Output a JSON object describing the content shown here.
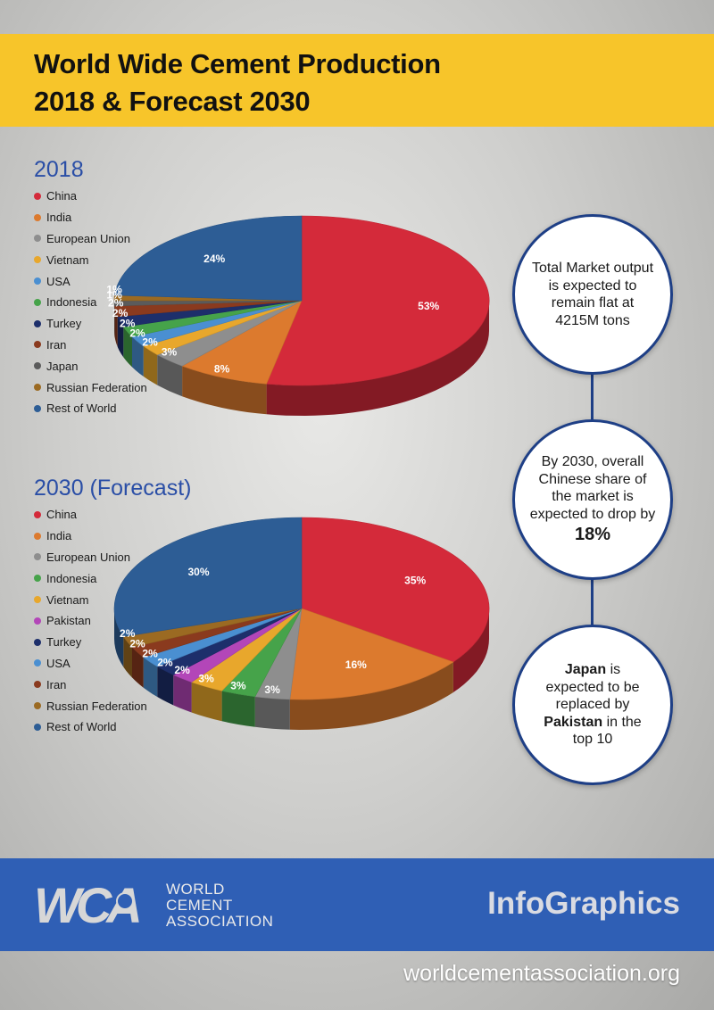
{
  "header": {
    "title_line1": "World Wide Cement Production",
    "title_line2": "2018 & Forecast 2030"
  },
  "chart_data": [
    {
      "type": "pie",
      "title": "2018",
      "start_label": "China",
      "categories": [
        "China",
        "India",
        "European Union",
        "Vietnam",
        "USA",
        "Indonesia",
        "Turkey",
        "Iran",
        "Japan",
        "Russian Federation",
        "Rest of World"
      ],
      "values": [
        53,
        8,
        3,
        2,
        2,
        2,
        2,
        2,
        1,
        1,
        24
      ],
      "value_labels": [
        "53%",
        "8%",
        "3%",
        "2%",
        "2%",
        "2%",
        "2%",
        "2%",
        "1%",
        "1%",
        "24%"
      ],
      "colors": [
        "#d42a3a",
        "#dc7a2e",
        "#8e8e8e",
        "#e8a72c",
        "#4a8fd1",
        "#46a34a",
        "#1d2f6b",
        "#8a3a1e",
        "#5b5b5b",
        "#9b6a22",
        "#2d5d95"
      ],
      "legend_position": "left"
    },
    {
      "type": "pie",
      "title": "2030 (Forecast)",
      "categories": [
        "China",
        "India",
        "European Union",
        "Indonesia",
        "Vietnam",
        "Pakistan",
        "Turkey",
        "USA",
        "Iran",
        "Russian Federation",
        "Rest of World"
      ],
      "values": [
        35,
        16,
        3,
        3,
        3,
        2,
        2,
        2,
        2,
        2,
        30
      ],
      "value_labels": [
        "35%",
        "16%",
        "3%",
        "3%",
        "3%",
        "2%",
        "2%",
        "2%",
        "2%",
        "2%",
        "30%"
      ],
      "colors": [
        "#d42a3a",
        "#dc7a2e",
        "#8e8e8e",
        "#46a34a",
        "#e8a72c",
        "#b346b8",
        "#1d2f6b",
        "#4a8fd1",
        "#8a3a1e",
        "#9b6a22",
        "#2d5d95"
      ],
      "legend_position": "left"
    }
  ],
  "bubbles": {
    "one": {
      "text": "Total Market output is expected to remain flat at 4215M tons"
    },
    "two": {
      "text": "By 2030, overall Chinese share of the market is expected to drop by",
      "highlight": "18%"
    },
    "three": {
      "word1": "Japan",
      "text1": "is expected to be replaced by",
      "word2": "Pakistan",
      "text2": "in the top 10"
    }
  },
  "footer": {
    "logo_mark": "WCA",
    "logo_line1": "WORLD",
    "logo_line2": "CEMENT",
    "logo_line3": "ASSOCIATION",
    "brand": "InfoGraphics",
    "website": "worldcementassociation.org"
  },
  "icons": {
    "logo": "wca-logo-icon",
    "globe": "globe-icon"
  },
  "colors": {
    "banner": "#f7c52a",
    "footer": "#2f5fb5",
    "title_blue": "#2a4ea6",
    "bubble_border": "#1e3f86"
  }
}
